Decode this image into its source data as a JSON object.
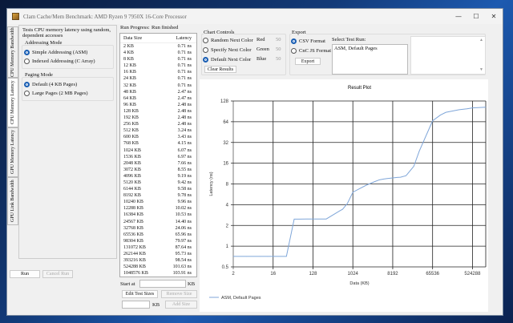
{
  "window": {
    "title": "Clam Cache/Mem Benchmark: AMD Ryzen 9 7950X 16-Core Processor",
    "minimize": "—",
    "maximize": "☐",
    "close": "✕"
  },
  "tabs": [
    {
      "label": "CPU Memory Bandwidth"
    },
    {
      "label": "CPU Memory Latency",
      "active": true
    },
    {
      "label": "GPU Memory Latency"
    },
    {
      "label": "GPU Link Bandwidth"
    }
  ],
  "config": {
    "description": "Tests CPU memory latency using random, dependent accesses",
    "addressing": {
      "label": "Addressing Mode",
      "options": [
        {
          "label": "Simple Addressing (ASM)",
          "selected": true
        },
        {
          "label": "Indexed Addressing (C Array)",
          "selected": false
        }
      ]
    },
    "paging": {
      "label": "Paging Mode",
      "options": [
        {
          "label": "Default (4 KB Pages)",
          "selected": true
        },
        {
          "label": "Large Pages (2 MB Pages)",
          "selected": false
        }
      ]
    }
  },
  "run": {
    "run_label": "Run",
    "cancel_label": "Cancel Run"
  },
  "progress": {
    "label": "Run Progress:",
    "status": "Run finished"
  },
  "results": {
    "headers": [
      "Data Size",
      "Latency"
    ],
    "rows": [
      [
        "2 KB",
        "0.71 ns"
      ],
      [
        "4 KB",
        "0.71 ns"
      ],
      [
        "8 KB",
        "0.71 ns"
      ],
      [
        "12 KB",
        "0.71 ns"
      ],
      [
        "16 KB",
        "0.71 ns"
      ],
      [
        "24 KB",
        "0.71 ns"
      ],
      [
        "32 KB",
        "0.71 ns"
      ],
      [
        "48 KB",
        "2.47 ns"
      ],
      [
        "64 KB",
        "2.47 ns"
      ],
      [
        "96 KB",
        "2.48 ns"
      ],
      [
        "128 KB",
        "2.48 ns"
      ],
      [
        "192 KB",
        "2.48 ns"
      ],
      [
        "256 KB",
        "2.48 ns"
      ],
      [
        "512 KB",
        "3.24 ns"
      ],
      [
        "600 KB",
        "3.43 ns"
      ],
      [
        "768 KB",
        "4.15 ns"
      ],
      [
        "1024 KB",
        "6.07 ns"
      ],
      [
        "1536 KB",
        "6.97 ns"
      ],
      [
        "2048 KB",
        "7.66 ns"
      ],
      [
        "3072 KB",
        "8.55 ns"
      ],
      [
        "4096 KB",
        "9.19 ns"
      ],
      [
        "5120 KB",
        "9.42 ns"
      ],
      [
        "6144 KB",
        "9.58 ns"
      ],
      [
        "8192 KB",
        "9.78 ns"
      ],
      [
        "10240 KB",
        "9.96 ns"
      ],
      [
        "12288 KB",
        "10.02 ns"
      ],
      [
        "16384 KB",
        "10.53 ns"
      ],
      [
        "24567 KB",
        "14.40 ns"
      ],
      [
        "32768 KB",
        "24.06 ns"
      ],
      [
        "65536 KB",
        "65.96 ns"
      ],
      [
        "98304 KB",
        "79.97 ns"
      ],
      [
        "131072 KB",
        "87.64 ns"
      ],
      [
        "262144 KB",
        "95.73 ns"
      ],
      [
        "393216 KB",
        "98.54 ns"
      ],
      [
        "524288 KB",
        "101.63 ns"
      ],
      [
        "1048576 KB",
        "103.91 ns"
      ]
    ]
  },
  "sizes": {
    "start_label": "Start at",
    "start_value": "",
    "unit": "KB",
    "edit_label": "Edit Test Sizes",
    "remove_label": "Remove Size",
    "add_value": "",
    "add_label": "Add Size"
  },
  "chart_controls": {
    "label": "Chart Controls",
    "options": [
      {
        "label": "Random Next Color",
        "selected": false
      },
      {
        "label": "Specify Next Color",
        "selected": false
      },
      {
        "label": "Default Next Color",
        "selected": true
      }
    ],
    "red_label": "Red",
    "red": "50",
    "green_label": "Green",
    "green": "50",
    "blue_label": "Blue",
    "blue": "50",
    "clear_label": "Clear Results"
  },
  "export": {
    "label": "Export",
    "options": [
      {
        "label": "CSV Format",
        "selected": true
      },
      {
        "label": "CnC JS Format",
        "selected": false
      }
    ],
    "export_label": "Export",
    "select_run_label": "Select Test Run:",
    "runs": [
      "ASM, Default Pages"
    ]
  },
  "chart_data": {
    "type": "line",
    "title": "Result Plot",
    "xlabel": "Data (KB)",
    "ylabel": "Latency (ns)",
    "x_scale": "log2",
    "y_scale": "log2",
    "xlim": [
      2,
      1048576
    ],
    "ylim": [
      0.5,
      128
    ],
    "x_ticks": [
      "2",
      "16",
      "128",
      "1024",
      "8192",
      "65536",
      "524288"
    ],
    "y_ticks": [
      "0.5",
      "1",
      "2",
      "4",
      "8",
      "16",
      "32",
      "64",
      "128"
    ],
    "grid": true,
    "legend": "bottom-left",
    "line_color": "#7fa6d9",
    "series": [
      {
        "name": "ASM, Default Pages",
        "x": [
          2,
          4,
          8,
          12,
          16,
          24,
          32,
          48,
          64,
          96,
          128,
          192,
          256,
          512,
          600,
          768,
          1024,
          1536,
          2048,
          3072,
          4096,
          5120,
          6144,
          8192,
          10240,
          12288,
          16384,
          24567,
          32768,
          65536,
          98304,
          131072,
          262144,
          393216,
          524288,
          1048576
        ],
        "y": [
          0.71,
          0.71,
          0.71,
          0.71,
          0.71,
          0.71,
          0.71,
          2.47,
          2.47,
          2.48,
          2.48,
          2.48,
          2.48,
          3.24,
          3.43,
          4.15,
          6.07,
          6.97,
          7.66,
          8.55,
          9.19,
          9.42,
          9.58,
          9.78,
          9.96,
          10.02,
          10.53,
          14.4,
          24.06,
          65.96,
          79.97,
          87.64,
          95.73,
          98.54,
          101.63,
          103.91
        ]
      }
    ]
  }
}
